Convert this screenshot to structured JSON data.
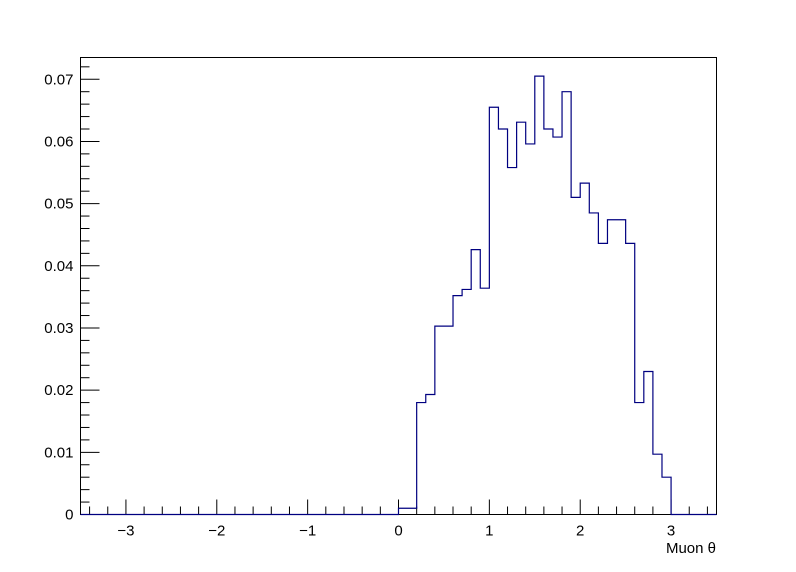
{
  "chart_data": {
    "type": "histogram",
    "title": "",
    "xlabel": "Muon θ",
    "ylabel": "",
    "xlim": [
      -3.5,
      3.5
    ],
    "ylim": [
      0,
      0.0735
    ],
    "grid": false,
    "line_color": "#000080",
    "x_ticks": [
      {
        "value": -3,
        "label": "−3"
      },
      {
        "value": -2,
        "label": "−2"
      },
      {
        "value": -1,
        "label": "−1"
      },
      {
        "value": 0,
        "label": "0"
      },
      {
        "value": 1,
        "label": "1"
      },
      {
        "value": 2,
        "label": "2"
      },
      {
        "value": 3,
        "label": "3"
      }
    ],
    "y_ticks": [
      {
        "value": 0,
        "label": "0"
      },
      {
        "value": 0.01,
        "label": "0.01"
      },
      {
        "value": 0.02,
        "label": "0.02"
      },
      {
        "value": 0.03,
        "label": "0.03"
      },
      {
        "value": 0.04,
        "label": "0.04"
      },
      {
        "value": 0.05,
        "label": "0.05"
      },
      {
        "value": 0.06,
        "label": "0.06"
      },
      {
        "value": 0.07,
        "label": "0.07"
      }
    ],
    "bins": {
      "edges": [
        0.0,
        0.2,
        0.3,
        0.4,
        0.6,
        0.7,
        0.8,
        0.9,
        1.0,
        1.1,
        1.2,
        1.3,
        1.4,
        1.5,
        1.6,
        1.7,
        1.8,
        1.9,
        2.0,
        2.1,
        2.2,
        2.3,
        2.5,
        2.6,
        2.7,
        2.8,
        2.9,
        3.0
      ],
      "values": [
        0.001,
        0.018,
        0.0193,
        0.0303,
        0.0352,
        0.0362,
        0.0426,
        0.0364,
        0.0655,
        0.062,
        0.0558,
        0.0631,
        0.0596,
        0.0705,
        0.062,
        0.0607,
        0.068,
        0.051,
        0.0533,
        0.0485,
        0.0436,
        0.0474,
        0.0436,
        0.018,
        0.023,
        0.0097,
        0.006
      ]
    }
  }
}
